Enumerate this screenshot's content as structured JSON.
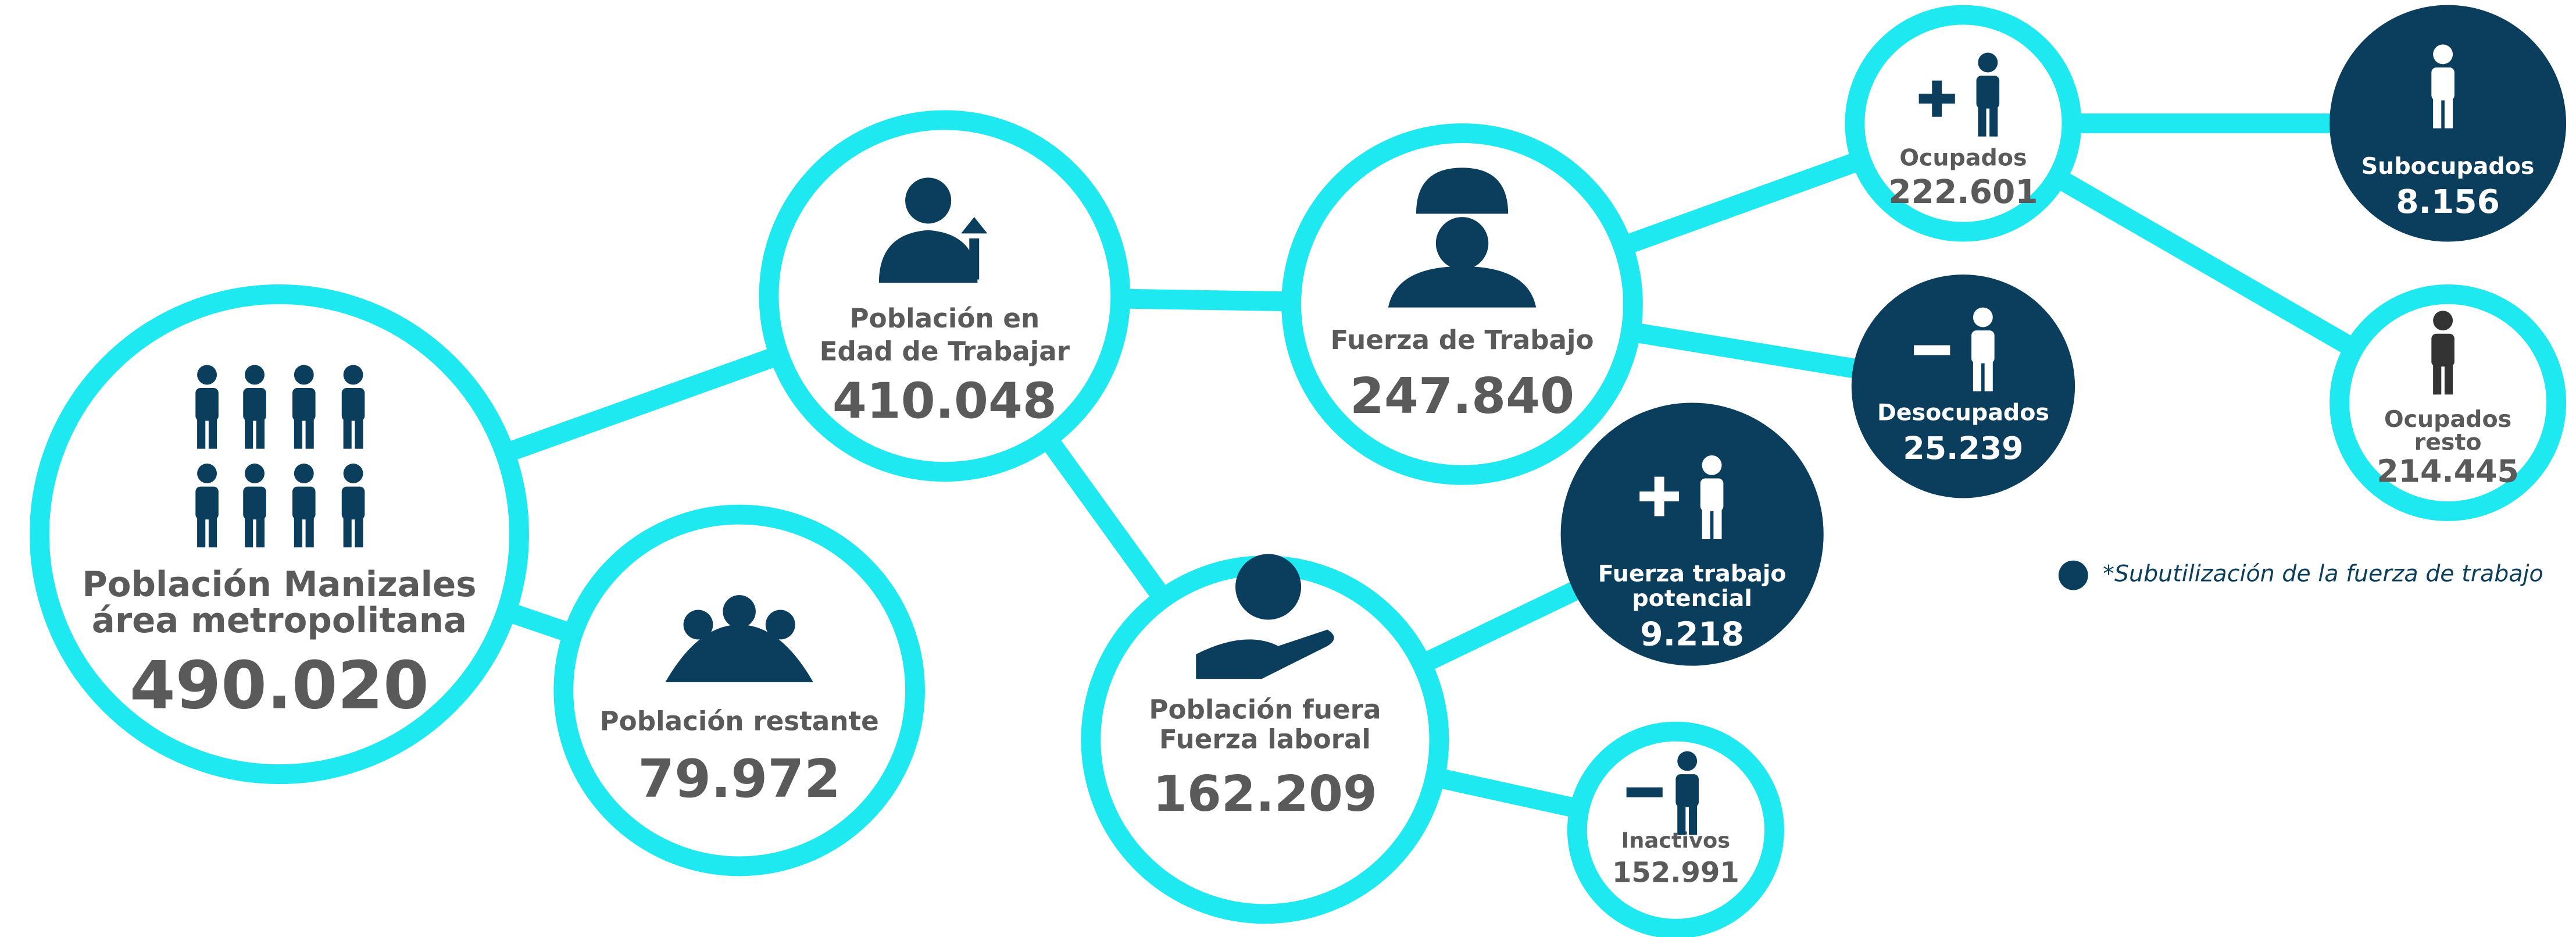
{
  "nodes": [
    {
      "label": [
        "Población Manizales",
        "área metropolitana"
      ],
      "value": "490.020"
    },
    {
      "label": [
        "Población restante"
      ],
      "value": "79.972"
    },
    {
      "label": [
        "Población en",
        "Edad de Trabajar"
      ],
      "value": "410.048"
    },
    {
      "label": [
        "Fuerza de Trabajo"
      ],
      "value": "247.840"
    },
    {
      "label": [
        "Población fuera",
        "Fuerza laboral"
      ],
      "value": "162.209"
    },
    {
      "label": [
        "Ocupados"
      ],
      "value": "222.601"
    },
    {
      "label": [
        "Desocupados"
      ],
      "value": "25.239"
    },
    {
      "label": [
        "Fuerza trabajo",
        "potencial"
      ],
      "value": "9.218"
    },
    {
      "label": [
        "Inactivos"
      ],
      "value": "152.991"
    },
    {
      "label": [
        "Subocupados"
      ],
      "value": "8.156"
    },
    {
      "label": [
        "Ocupados",
        "resto"
      ],
      "value": "214.445"
    }
  ],
  "legend": "*Subutilización de la fuerza de trabajo"
}
